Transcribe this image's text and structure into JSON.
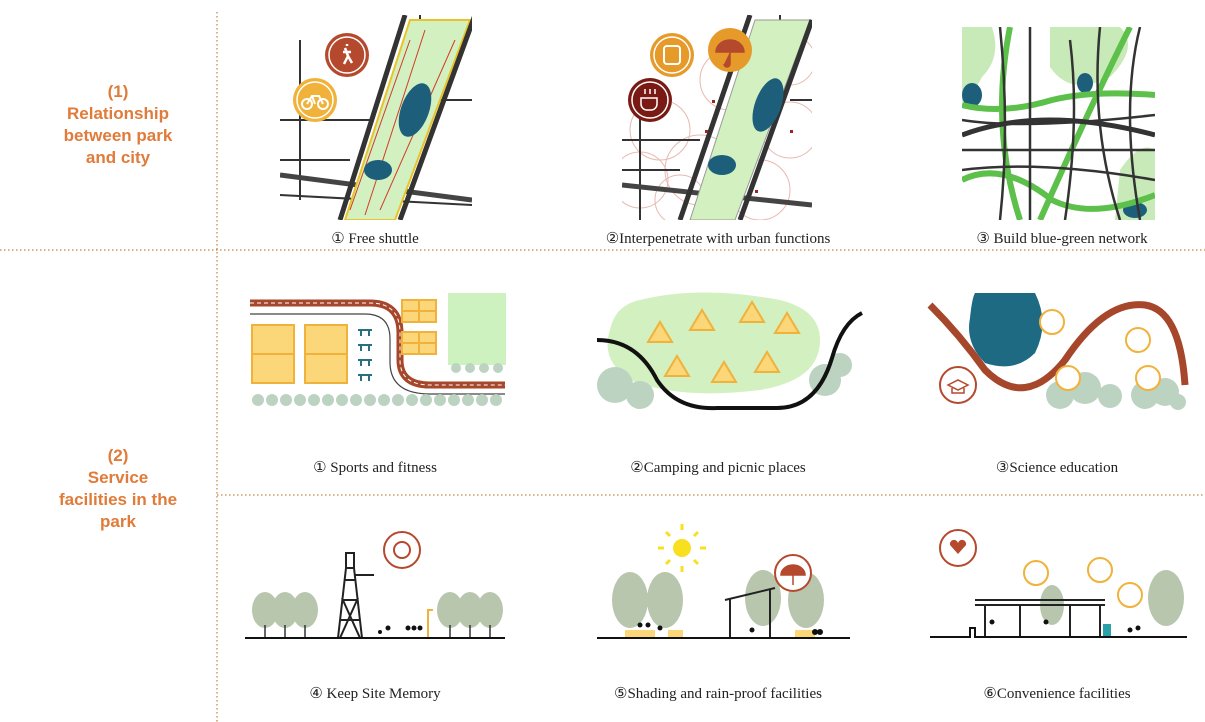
{
  "sections": [
    {
      "label_lines": [
        "(1)",
        "Relationship",
        "between park",
        "and city"
      ],
      "items": [
        "① Free shuttle",
        "②Interpenetrate with urban functions",
        "③ Build blue-green network"
      ]
    },
    {
      "label_lines": [
        "(2)",
        "Service",
        "facilities in the",
        "park"
      ],
      "items": [
        "① Sports and fitness",
        "②Camping and picnic places",
        "③Science education",
        "④ Keep Site Memory",
        "⑤Shading and rain-proof facilities",
        "⑥Convenience facilities"
      ]
    }
  ]
}
